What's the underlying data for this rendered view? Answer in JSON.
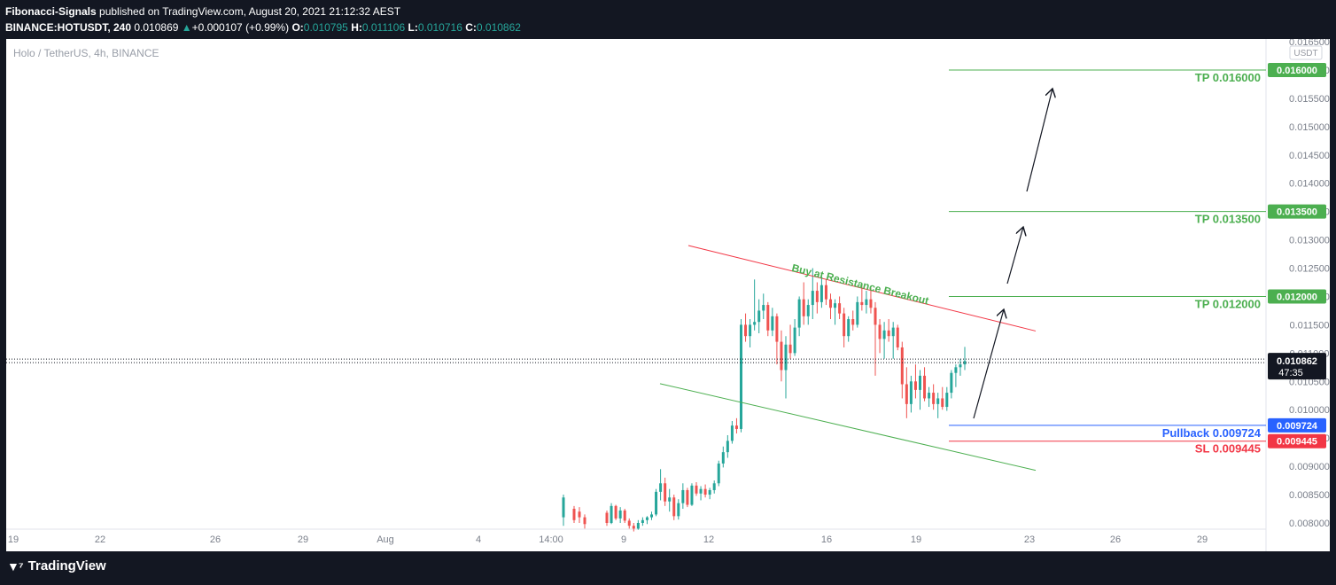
{
  "header": {
    "publisher": "Fibonacci-Signals",
    "published_text": "published on TradingView.com, August 20, 2021 21:12:32 AEST",
    "symbol": "BINANCE:HOTUSDT, 240",
    "last": "0.010869",
    "change": "+0.000107 (+0.99%)",
    "open_label": "O:",
    "open": "0.010795",
    "high_label": "H:",
    "high": "0.011106",
    "low_label": "L:",
    "low": "0.010716",
    "close_label": "C:",
    "close": "0.010862"
  },
  "chart_title": "Holo / TetherUS, 4h, BINANCE",
  "currency_label": "USDT",
  "footer": {
    "logo_text": "TradingView"
  },
  "colors": {
    "up": "#26a69a",
    "down": "#ef5350",
    "tp": "#4caf50",
    "pullback": "#2962ff",
    "sl": "#f23645",
    "resistance": "#f23645",
    "support": "#4caf50"
  },
  "chart_data": {
    "type": "candlestick",
    "title": "Holo / TetherUS, 4h, BINANCE",
    "ylim": [
      0.008,
      0.0165
    ],
    "y_ticks": [
      "0.016500",
      "0.016000",
      "0.015500",
      "0.015000",
      "0.014500",
      "0.014000",
      "0.013500",
      "0.013000",
      "0.012500",
      "0.012000",
      "0.011500",
      "0.011000",
      "0.010500",
      "0.010000",
      "0.009500",
      "0.009000",
      "0.008500",
      "0.008000"
    ],
    "x_ticks": [
      "19",
      "22",
      "26",
      "29",
      "Aug",
      "4",
      "14:00",
      "9",
      "12",
      "16",
      "19",
      "23",
      "26",
      "29"
    ],
    "current_price": "0.010862",
    "countdown": "47:35",
    "levels": [
      {
        "label": "TP 0.016000",
        "price": 0.016,
        "badge": "0.016000",
        "kind": "tp"
      },
      {
        "label": "TP 0.013500",
        "price": 0.0135,
        "badge": "0.013500",
        "kind": "tp"
      },
      {
        "label": "TP 0.012000",
        "price": 0.012,
        "badge": "0.012000",
        "kind": "tp"
      },
      {
        "label": "Pullback 0.009724",
        "price": 0.009724,
        "badge": "0.009724",
        "kind": "pullback"
      },
      {
        "label": "SL 0.009445",
        "price": 0.009445,
        "badge": "0.009445",
        "kind": "sl"
      }
    ],
    "annotation": "Buy at Resistance Breakout",
    "channel": {
      "resistance": [
        [
          0.0129,
          0
        ],
        [
          0.01139,
          1
        ]
      ],
      "support": [
        [
          0.01046,
          0
        ],
        [
          0.00893,
          1
        ]
      ]
    },
    "candles": [
      [
        0.00818,
        0.00822,
        0.00795,
        0.008
      ],
      [
        0.008,
        0.00835,
        0.00798,
        0.0083
      ],
      [
        0.0083,
        0.00832,
        0.00805,
        0.00808
      ],
      [
        0.00808,
        0.00828,
        0.008,
        0.00822
      ],
      [
        0.00822,
        0.00825,
        0.008,
        0.00804
      ],
      [
        0.00804,
        0.00808,
        0.0079,
        0.00795
      ],
      [
        0.00795,
        0.008,
        0.00785,
        0.0079
      ],
      [
        0.0079,
        0.00805,
        0.00788,
        0.008
      ],
      [
        0.008,
        0.0081,
        0.00795,
        0.00805
      ],
      [
        0.00805,
        0.00812,
        0.00798,
        0.0081
      ],
      [
        0.0081,
        0.0082,
        0.00805,
        0.00815
      ],
      [
        0.00815,
        0.0086,
        0.00812,
        0.00855
      ],
      [
        0.00855,
        0.00895,
        0.0084,
        0.0087
      ],
      [
        0.0087,
        0.0088,
        0.0083,
        0.00838
      ],
      [
        0.00838,
        0.0086,
        0.0082,
        0.00845
      ],
      [
        0.00845,
        0.0085,
        0.00805,
        0.00812
      ],
      [
        0.00812,
        0.00842,
        0.00806,
        0.00835
      ],
      [
        0.00835,
        0.0087,
        0.00825,
        0.00858
      ],
      [
        0.00858,
        0.00862,
        0.00828,
        0.00832
      ],
      [
        0.00832,
        0.0087,
        0.0083,
        0.00866
      ],
      [
        0.00866,
        0.00872,
        0.00848,
        0.00852
      ],
      [
        0.00852,
        0.00865,
        0.0084,
        0.0086
      ],
      [
        0.0086,
        0.00868,
        0.00845,
        0.0085
      ],
      [
        0.0085,
        0.00862,
        0.00842,
        0.00858
      ],
      [
        0.00858,
        0.00875,
        0.00852,
        0.0087
      ],
      [
        0.0087,
        0.0091,
        0.00865,
        0.00905
      ],
      [
        0.00905,
        0.00935,
        0.00898,
        0.00925
      ],
      [
        0.00925,
        0.00955,
        0.00915,
        0.00945
      ],
      [
        0.00945,
        0.0098,
        0.0094,
        0.00972
      ],
      [
        0.00972,
        0.00985,
        0.00958,
        0.00966
      ],
      [
        0.00966,
        0.0116,
        0.0096,
        0.0115
      ],
      [
        0.0115,
        0.0117,
        0.0112,
        0.0113
      ],
      [
        0.0113,
        0.0116,
        0.0111,
        0.0115
      ],
      [
        0.0115,
        0.0123,
        0.0114,
        0.01155
      ],
      [
        0.01155,
        0.01195,
        0.01135,
        0.01175
      ],
      [
        0.01175,
        0.01205,
        0.0116,
        0.01185
      ],
      [
        0.01185,
        0.0119,
        0.0113,
        0.0114
      ],
      [
        0.0114,
        0.0118,
        0.0113,
        0.01165
      ],
      [
        0.01165,
        0.0117,
        0.0108,
        0.0112
      ],
      [
        0.0112,
        0.0114,
        0.0105,
        0.0107
      ],
      [
        0.0107,
        0.0113,
        0.0102,
        0.01115
      ],
      [
        0.01115,
        0.0115,
        0.0109,
        0.011
      ],
      [
        0.011,
        0.0116,
        0.01095,
        0.01145
      ],
      [
        0.01145,
        0.012,
        0.0113,
        0.01195
      ],
      [
        0.01195,
        0.01225,
        0.0115,
        0.01165
      ],
      [
        0.01165,
        0.01195,
        0.0115,
        0.01185
      ],
      [
        0.01185,
        0.0125,
        0.0116,
        0.0121
      ],
      [
        0.0121,
        0.01225,
        0.0117,
        0.0119
      ],
      [
        0.0119,
        0.01235,
        0.0118,
        0.0122
      ],
      [
        0.0122,
        0.0123,
        0.01185,
        0.01195
      ],
      [
        0.01195,
        0.01205,
        0.0116,
        0.0118
      ],
      [
        0.0118,
        0.01195,
        0.0115,
        0.01188
      ],
      [
        0.01188,
        0.012,
        0.0116,
        0.0117
      ],
      [
        0.0117,
        0.0118,
        0.0111,
        0.0113
      ],
      [
        0.0113,
        0.01165,
        0.0112,
        0.0116
      ],
      [
        0.0116,
        0.01175,
        0.0114,
        0.0115
      ],
      [
        0.0115,
        0.012,
        0.01145,
        0.0119
      ],
      [
        0.0119,
        0.0122,
        0.01175,
        0.01185
      ],
      [
        0.01185,
        0.0121,
        0.0117,
        0.01195
      ],
      [
        0.01195,
        0.01215,
        0.0117,
        0.0118
      ],
      [
        0.0118,
        0.0119,
        0.0106,
        0.0115
      ],
      [
        0.0115,
        0.0116,
        0.011,
        0.01125
      ],
      [
        0.01125,
        0.01155,
        0.0109,
        0.0114
      ],
      [
        0.0114,
        0.0116,
        0.0112,
        0.0113
      ],
      [
        0.0113,
        0.01155,
        0.0109,
        0.01145
      ],
      [
        0.01145,
        0.0115,
        0.01105,
        0.0111
      ],
      [
        0.0111,
        0.0112,
        0.0102,
        0.01045
      ],
      [
        0.01045,
        0.01075,
        0.00985,
        0.0101
      ],
      [
        0.0101,
        0.0106,
        0.00995,
        0.0105
      ],
      [
        0.0105,
        0.0108,
        0.0102,
        0.01035
      ],
      [
        0.01035,
        0.0107,
        0.01,
        0.0106
      ],
      [
        0.0106,
        0.01075,
        0.01015,
        0.0102
      ],
      [
        0.0102,
        0.0104,
        0.01005,
        0.0103
      ],
      [
        0.0103,
        0.01045,
        0.01,
        0.0101
      ],
      [
        0.0101,
        0.0103,
        0.00985,
        0.0102
      ],
      [
        0.0102,
        0.0104,
        0.01,
        0.01005
      ],
      [
        0.01005,
        0.0104,
        0.00998,
        0.0103
      ],
      [
        0.0103,
        0.0107,
        0.0102,
        0.01065
      ],
      [
        0.01065,
        0.0108,
        0.0104,
        0.01075
      ],
      [
        0.01075,
        0.0109,
        0.0106,
        0.0108
      ],
      [
        0.0108,
        0.01111,
        0.0107,
        0.01086
      ]
    ],
    "early_candles": [
      {
        "o": 0.0081,
        "h": 0.0085,
        "l": 0.00795,
        "c": 0.00845
      },
      {
        "o": 0.00845,
        "h": 0.0083,
        "l": 0.008,
        "c": 0.00825
      }
    ]
  }
}
